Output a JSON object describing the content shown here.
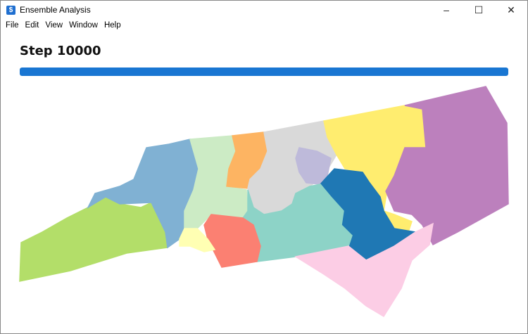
{
  "window": {
    "title": "Ensemble Analysis",
    "app_icon": "ensemble-app-icon",
    "controls": [
      "minimize",
      "maximize",
      "close"
    ]
  },
  "menu": [
    "File",
    "Edit",
    "View",
    "Window",
    "Help"
  ],
  "main": {
    "heading": "Step 10000",
    "progress_percent": 100,
    "progress_color": "#1976d2"
  },
  "map": {
    "region": "North Carolina",
    "district_colors": [
      "#b3de69",
      "#80b1d3",
      "#ccebc5",
      "#fdb462",
      "#d9d9d9",
      "#bebada",
      "#ffed6f",
      "#bc80bd",
      "#1f78b4",
      "#8dd3c7",
      "#fb8072",
      "#ffffb3",
      "#fccde5"
    ]
  }
}
